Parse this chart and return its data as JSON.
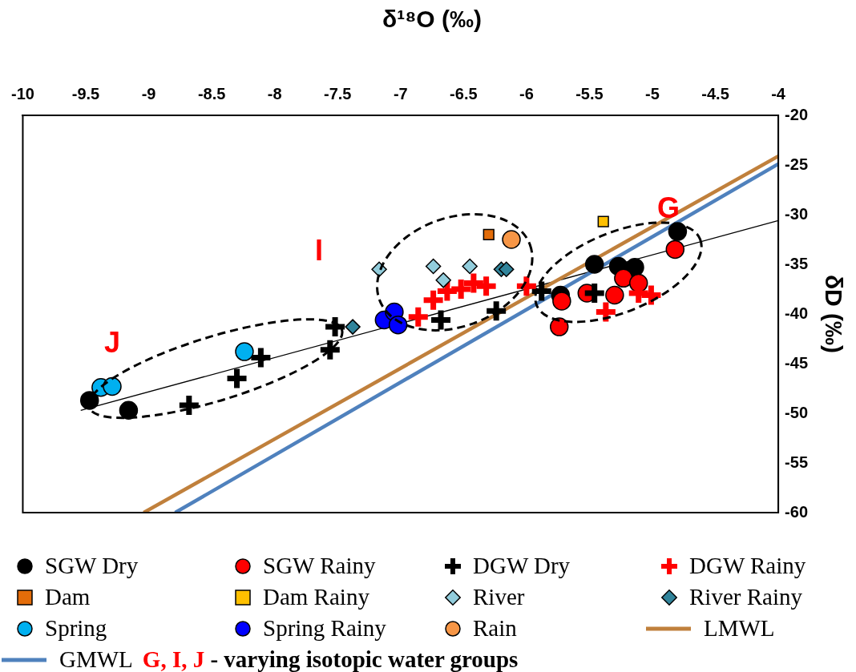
{
  "chart_data": {
    "type": "scatter",
    "title": "δ¹⁸O (‰)",
    "ylabel": "δD (‰)",
    "xlim": [
      -10,
      -4
    ],
    "xticks": [
      -10,
      -9.5,
      -9,
      -8.5,
      -8,
      -7.5,
      -7,
      -6.5,
      -6,
      -5.5,
      -5,
      -4.5,
      -4
    ],
    "ylim": [
      -60,
      -20
    ],
    "yticks": [
      -60,
      -55,
      -50,
      -45,
      -40,
      -35,
      -30,
      -25,
      -20
    ],
    "grid": false,
    "legend": "bottom",
    "annotations": [
      "G",
      "I",
      "J",
      "G, I, J",
      "-  varying isotopic water groups"
    ],
    "series": [
      {
        "name": "SGW Dry",
        "color": "#000000",
        "marker": "circle",
        "x": [
          -9.47,
          -9.16,
          -5.46,
          -5.27,
          -5.14,
          -4.8,
          -5.73
        ],
        "values": [
          -48.7,
          -49.7,
          -35.0,
          -35.2,
          -35.3,
          -31.7,
          -38.1
        ]
      },
      {
        "name": "SGW Rainy",
        "color": "#ff0000",
        "marker": "circle",
        "x": [
          -5.72,
          -5.74,
          -5.52,
          -5.3,
          -5.23,
          -5.11,
          -4.82
        ],
        "values": [
          -38.7,
          -41.3,
          -37.9,
          -38.1,
          -36.4,
          -36.9,
          -33.5
        ]
      },
      {
        "name": "DGW Dry",
        "color": "#000000",
        "marker": "cross",
        "x": [
          -8.68,
          -8.3,
          -8.11,
          -7.56,
          -7.52,
          -6.68,
          -6.24,
          -5.88,
          -5.46
        ],
        "values": [
          -49.2,
          -46.5,
          -44.4,
          -43.6,
          -41.3,
          -40.6,
          -39.7,
          -37.7,
          -37.9
        ]
      },
      {
        "name": "DGW Rainy",
        "color": "#ff0000",
        "marker": "cross",
        "x": [
          -6.86,
          -6.74,
          -6.63,
          -6.52,
          -6.42,
          -6.32,
          -6.0,
          -5.37,
          -5.11,
          -5.01
        ],
        "values": [
          -40.3,
          -38.6,
          -37.7,
          -37.5,
          -36.9,
          -37.2,
          -37.2,
          -39.8,
          -37.9,
          -38.1
        ]
      },
      {
        "name": "Dam",
        "color": "#e36c09",
        "marker": "square",
        "x": [
          -6.3
        ],
        "values": [
          -32.0
        ]
      },
      {
        "name": "Dam Rainy",
        "color": "#ffc000",
        "marker": "square",
        "x": [
          -5.39
        ],
        "values": [
          -30.7
        ]
      },
      {
        "name": "River",
        "color": "#92cddc",
        "marker": "diamond",
        "x": [
          -7.17,
          -6.74,
          -6.66,
          -6.45
        ],
        "values": [
          -35.5,
          -35.2,
          -36.6,
          -35.2
        ]
      },
      {
        "name": "River Rainy",
        "color": "#31849b",
        "marker": "diamond",
        "x": [
          -6.2,
          -6.16,
          -7.38
        ],
        "values": [
          -35.5,
          -35.5,
          -41.3
        ]
      },
      {
        "name": "Spring",
        "color": "#00b0f0",
        "marker": "circle",
        "x": [
          -9.38,
          -9.29,
          -8.24
        ],
        "values": [
          -47.4,
          -47.3,
          -43.8
        ]
      },
      {
        "name": "Spring Rainy",
        "color": "#0000ff",
        "marker": "circle",
        "x": [
          -7.13,
          -7.05,
          -7.02
        ],
        "values": [
          -40.6,
          -39.8,
          -41.1
        ]
      },
      {
        "name": "Rain",
        "color": "#f79646",
        "marker": "circle",
        "x": [
          -6.12
        ],
        "values": [
          -32.5
        ]
      },
      {
        "name": "LMWL",
        "color": "#c0803c",
        "type": "line",
        "marker": "none",
        "x": [
          -9.04,
          -4
        ],
        "values": [
          -60,
          -24.1
        ]
      },
      {
        "name": "GMWL",
        "color": "#4f81bd",
        "type": "line",
        "marker": "none",
        "x": [
          -8.79,
          -4
        ],
        "values": [
          -60,
          -24.9
        ]
      },
      {
        "color": "#000000",
        "type": "line",
        "marker": "none",
        "x": [
          -9.54,
          -4
        ],
        "values": [
          -49.7,
          -30.6
        ]
      }
    ]
  }
}
